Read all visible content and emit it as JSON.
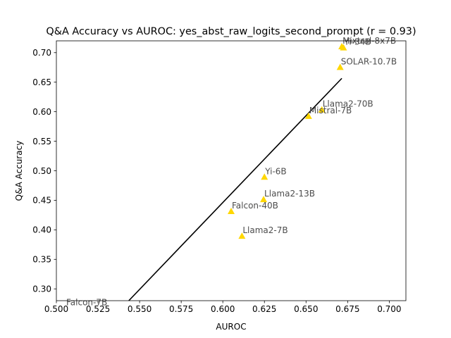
{
  "chart_data": {
    "type": "scatter",
    "title": "Q&A Accuracy vs AUROC: yes_abst_raw_logits_second_prompt (r = 0.93)",
    "xlabel": "AUROC",
    "ylabel": "Q&A Accuracy",
    "xlim": [
      0.5,
      0.71
    ],
    "ylim": [
      0.28,
      0.72
    ],
    "xticks": [
      "0.500",
      "0.525",
      "0.550",
      "0.575",
      "0.600",
      "0.625",
      "0.650",
      "0.675",
      "0.700"
    ],
    "yticks": [
      "0.30",
      "0.35",
      "0.40",
      "0.45",
      "0.50",
      "0.55",
      "0.60",
      "0.65",
      "0.70"
    ],
    "grid": false,
    "marker_color": "#FFD700",
    "line_color": "#000000",
    "points": [
      {
        "label": "Mixtral-8x7B",
        "x": 0.6715,
        "y": 0.7105
      },
      {
        "label": "Yi-34B",
        "x": 0.6725,
        "y": 0.7085
      },
      {
        "label": "SOLAR-10.7B",
        "x": 0.6705,
        "y": 0.6755
      },
      {
        "label": "Llama2-70B",
        "x": 0.6595,
        "y": 0.6035
      },
      {
        "label": "Mistral-7B",
        "x": 0.6515,
        "y": 0.5925
      },
      {
        "label": "Yi-6B",
        "x": 0.625,
        "y": 0.4895
      },
      {
        "label": "Llama2-13B",
        "x": 0.6245,
        "y": 0.4515
      },
      {
        "label": "Falcon-40B",
        "x": 0.605,
        "y": 0.4315
      },
      {
        "label": "Llama2-7B",
        "x": 0.6115,
        "y": 0.3895
      },
      {
        "label": "Falcon-7B",
        "x": 0.5055,
        "y": 0.2675
      }
    ],
    "fit_line": {
      "x": [
        0.5435,
        0.6715
      ],
      "y": [
        0.28,
        0.6565
      ]
    }
  }
}
